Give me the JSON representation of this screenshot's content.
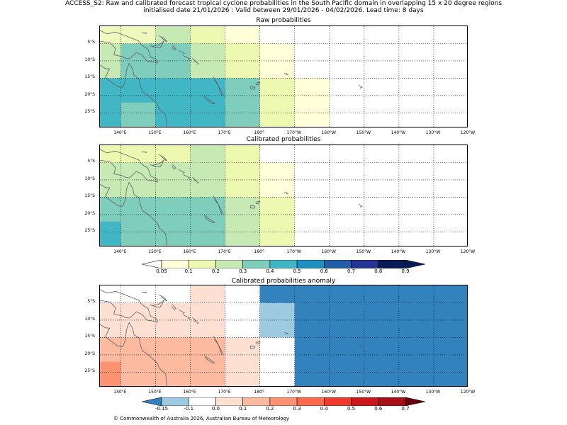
{
  "title_line1": "ACCESS_S2: Raw and calibrated forecast tropical cyclone probabilities in the South Pacific domain in overlapping 15 x 20 degree regions",
  "title_line2": "initialised date 21/01/2026 :  Valid between 29/01/2026 - 04/02/2026. Lead time: 8 days",
  "x_ticks": [
    "140°E",
    "150°E",
    "160°E",
    "170°E",
    "180°",
    "170°W",
    "160°W",
    "150°W",
    "140°W",
    "130°W",
    "120°W"
  ],
  "y_ticks": [
    "5°S",
    "10°S",
    "15°S",
    "20°S",
    "25°S"
  ],
  "panels": [
    {
      "title": "Raw probabilities",
      "cells": [
        {
          "lon0": 134,
          "lon1": 150,
          "lat0": 0,
          "lat1": -5,
          "color": "#f0f9bd"
        },
        {
          "lon0": 150,
          "lon1": 160,
          "lat0": 0,
          "lat1": -5,
          "color": "#c7e9b4"
        },
        {
          "lon0": 160,
          "lon1": 170,
          "lat0": 0,
          "lat1": -5,
          "color": "#edf8b1"
        },
        {
          "lon0": 170,
          "lon1": 180,
          "lat0": 0,
          "lat1": -5,
          "color": "#ffffd9"
        },
        {
          "lon0": 134,
          "lon1": 140,
          "lat0": -5,
          "lat1": -15,
          "color": "#c7e9b4"
        },
        {
          "lon0": 140,
          "lon1": 160,
          "lat0": -5,
          "lat1": -15,
          "color": "#7fcdbb"
        },
        {
          "lon0": 160,
          "lon1": 170,
          "lat0": -5,
          "lat1": -15,
          "color": "#c7e9b4"
        },
        {
          "lon0": 170,
          "lon1": 180,
          "lat0": -5,
          "lat1": -15,
          "color": "#edf8b1"
        },
        {
          "lon0": 180,
          "lon1": 190,
          "lat0": -5,
          "lat1": -15,
          "color": "#ffffd9"
        },
        {
          "lon0": 134,
          "lon1": 180,
          "lat0": -15,
          "lat1": -30,
          "color": "#41b6c4"
        },
        {
          "lon0": 140,
          "lon1": 150,
          "lat0": -22,
          "lat1": -30,
          "color": "#7fcdbb"
        },
        {
          "lon0": 170,
          "lon1": 180,
          "lat0": -15,
          "lat1": -30,
          "color": "#7fcdbb"
        },
        {
          "lon0": 180,
          "lon1": 190,
          "lat0": -15,
          "lat1": -30,
          "color": "#edf8b1"
        },
        {
          "lon0": 190,
          "lon1": 200,
          "lat0": -15,
          "lat1": -30,
          "color": "#ffffd9"
        }
      ]
    },
    {
      "title": "Calibrated probabilities",
      "cells": [
        {
          "lon0": 134,
          "lon1": 160,
          "lat0": 0,
          "lat1": -5,
          "color": "#edf8b1"
        },
        {
          "lon0": 160,
          "lon1": 170,
          "lat0": 0,
          "lat1": -5,
          "color": "#c7e9b4"
        },
        {
          "lon0": 170,
          "lon1": 180,
          "lat0": 0,
          "lat1": -5,
          "color": "#edf8b1"
        },
        {
          "lon0": 134,
          "lon1": 160,
          "lat0": -5,
          "lat1": -15,
          "color": "#c7e9b4"
        },
        {
          "lon0": 160,
          "lon1": 170,
          "lat0": -5,
          "lat1": -15,
          "color": "#c7e9b4"
        },
        {
          "lon0": 170,
          "lon1": 180,
          "lat0": -5,
          "lat1": -15,
          "color": "#edf8b1"
        },
        {
          "lon0": 180,
          "lon1": 190,
          "lat0": -5,
          "lat1": -15,
          "color": "#ffffd9"
        },
        {
          "lon0": 134,
          "lon1": 170,
          "lat0": -15,
          "lat1": -30,
          "color": "#7fcdbb"
        },
        {
          "lon0": 134,
          "lon1": 140,
          "lat0": -22,
          "lat1": -30,
          "color": "#41b6c4"
        },
        {
          "lon0": 170,
          "lon1": 180,
          "lat0": -15,
          "lat1": -30,
          "color": "#c7e9b4"
        },
        {
          "lon0": 180,
          "lon1": 190,
          "lat0": -15,
          "lat1": -30,
          "color": "#edf8b1"
        }
      ]
    },
    {
      "title": "Calibrated probabilities anomaly",
      "cells": [
        {
          "lon0": 134,
          "lon1": 160,
          "lat0": 0,
          "lat1": -5,
          "color": "#ffffff"
        },
        {
          "lon0": 160,
          "lon1": 170,
          "lat0": 0,
          "lat1": -5,
          "color": "#fee0d2"
        },
        {
          "lon0": 134,
          "lon1": 160,
          "lat0": -5,
          "lat1": -15,
          "color": "#fee0d2"
        },
        {
          "lon0": 160,
          "lon1": 170,
          "lat0": -5,
          "lat1": -15,
          "color": "#fee0d2"
        },
        {
          "lon0": 134,
          "lon1": 170,
          "lat0": -15,
          "lat1": -30,
          "color": "#fcbba1"
        },
        {
          "lon0": 134,
          "lon1": 140,
          "lat0": -22,
          "lat1": -30,
          "color": "#fc9272"
        },
        {
          "lon0": 170,
          "lon1": 180,
          "lat0": -15,
          "lat1": -30,
          "color": "#fee0d2"
        },
        {
          "lon0": 180,
          "lon1": 240,
          "lat0": 0,
          "lat1": -30,
          "color": "#3182bd"
        },
        {
          "lon0": 180,
          "lon1": 190,
          "lat0": -15,
          "lat1": -30,
          "color": "#ffffff"
        },
        {
          "lon0": 180,
          "lon1": 190,
          "lat0": -5,
          "lat1": -15,
          "color": "#9ecae1"
        }
      ]
    }
  ],
  "colorbar_prob": {
    "labels": [
      "0.05",
      "0.1",
      "0.2",
      "0.3",
      "0.4",
      "0.5",
      "0.6",
      "0.7",
      "0.8",
      "0.9"
    ],
    "colors": [
      "#ffffd9",
      "#edf8b1",
      "#c7e9b4",
      "#7fcdbb",
      "#41b6c4",
      "#1d91c0",
      "#225ea8",
      "#253494",
      "#081d58"
    ],
    "under_color": "#ffffff",
    "over_color": "#081d58"
  },
  "colorbar_anom": {
    "labels": [
      "-0.15",
      "-0.1",
      "0.0",
      "0.1",
      "0.2",
      "0.3",
      "0.4",
      "0.5",
      "0.6",
      "0.7"
    ],
    "colors": [
      "#9ecae1",
      "#ffffff",
      "#fee0d2",
      "#fcbba1",
      "#fc9272",
      "#fb6a4a",
      "#ef3b2c",
      "#cb181d",
      "#a50f15"
    ],
    "under_color": "#3182bd",
    "over_color": "#67000d"
  },
  "copyright": "© Commonwealth of Australia 2026, Australian Bureau of Meteorology"
}
